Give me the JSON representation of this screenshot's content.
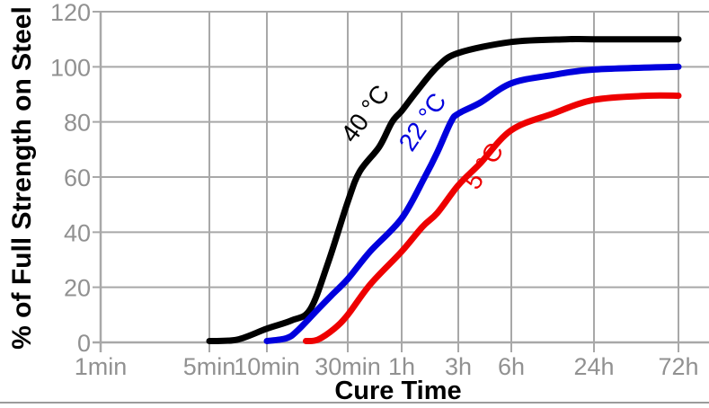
{
  "chart_data": {
    "type": "line",
    "title": "",
    "xlabel": "Cure Time",
    "ylabel": "% of Full Strength on Steel",
    "x_scale": "log-time",
    "grid": true,
    "grid_color": "#a8a8a8",
    "tick_label_color": "#919191",
    "title_color": "#000000",
    "ylim": [
      0,
      120
    ],
    "x_ticks": [
      {
        "label": "1min",
        "minutes": 1
      },
      {
        "label": "5min",
        "minutes": 5
      },
      {
        "label": "10min",
        "minutes": 10
      },
      {
        "label": "30min",
        "minutes": 30
      },
      {
        "label": "1h",
        "minutes": 60
      },
      {
        "label": "3h",
        "minutes": 180
      },
      {
        "label": "6h",
        "minutes": 360
      },
      {
        "label": "24h",
        "minutes": 1440
      },
      {
        "label": "72h",
        "minutes": 4320
      }
    ],
    "y_ticks": [
      {
        "label": "0",
        "value": 0
      },
      {
        "label": "20",
        "value": 20
      },
      {
        "label": "40",
        "value": 40
      },
      {
        "label": "60",
        "value": 60
      },
      {
        "label": "80",
        "value": 80
      },
      {
        "label": "100",
        "value": 100
      },
      {
        "label": "120",
        "value": 120
      }
    ],
    "series": [
      {
        "name": "40 °C",
        "color": "#000000",
        "points_minutes_vs_percent": [
          [
            5,
            0.5
          ],
          [
            7,
            1
          ],
          [
            10,
            5
          ],
          [
            14,
            8
          ],
          [
            18,
            12
          ],
          [
            23,
            29
          ],
          [
            30,
            51
          ],
          [
            35,
            62
          ],
          [
            45,
            71
          ],
          [
            53,
            80
          ],
          [
            60,
            84
          ],
          [
            80,
            91
          ],
          [
            120,
            100
          ],
          [
            180,
            105
          ],
          [
            360,
            109
          ],
          [
            900,
            110
          ],
          [
            1440,
            110
          ],
          [
            4320,
            110
          ]
        ]
      },
      {
        "name": "22 °C",
        "color": "#0000dd",
        "points_minutes_vs_percent": [
          [
            10,
            0.5
          ],
          [
            13,
            1.5
          ],
          [
            15,
            4
          ],
          [
            20,
            12
          ],
          [
            24,
            17
          ],
          [
            30,
            23
          ],
          [
            40,
            33
          ],
          [
            60,
            45
          ],
          [
            94,
            60
          ],
          [
            120,
            69
          ],
          [
            156,
            80
          ],
          [
            180,
            83
          ],
          [
            240,
            87
          ],
          [
            360,
            94
          ],
          [
            720,
            97
          ],
          [
            1440,
            99
          ],
          [
            4320,
            100
          ]
        ]
      },
      {
        "name": "5 °C",
        "color": "#ee0000",
        "points_minutes_vs_percent": [
          [
            17,
            0.5
          ],
          [
            20,
            1
          ],
          [
            25,
            5
          ],
          [
            30,
            10
          ],
          [
            40,
            21
          ],
          [
            60,
            33
          ],
          [
            90,
            42
          ],
          [
            120,
            47
          ],
          [
            180,
            57
          ],
          [
            240,
            65
          ],
          [
            360,
            77
          ],
          [
            720,
            83
          ],
          [
            1440,
            88
          ],
          [
            2880,
            89.5
          ],
          [
            4320,
            89.5
          ]
        ]
      }
    ]
  }
}
